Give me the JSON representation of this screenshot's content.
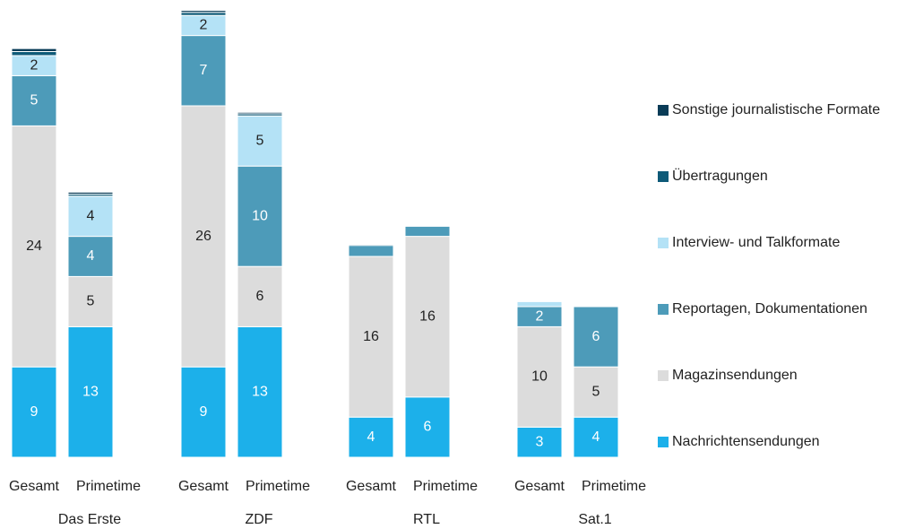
{
  "chart_data": {
    "type": "stacked-bar",
    "groups": [
      "Das Erste",
      "ZDF",
      "RTL",
      "Sat.1"
    ],
    "subcategories": [
      "Gesamt",
      "Primetime"
    ],
    "series": [
      {
        "name": "Nachrichtensendungen",
        "color": "#1cb0ea",
        "values": [
          9,
          13,
          9,
          13,
          4,
          6,
          3,
          4
        ]
      },
      {
        "name": "Magazinsendungen",
        "color": "#dcdcdc",
        "values": [
          24,
          5,
          26,
          6,
          16,
          16,
          10,
          5
        ]
      },
      {
        "name": "Reportagen, Dokumentationen",
        "color": "#4d9bb9",
        "values": [
          5,
          4,
          7,
          10,
          1.1,
          1,
          2,
          6
        ]
      },
      {
        "name": "Interview- und Talkformate",
        "color": "#b4e2f6",
        "values": [
          2,
          4,
          2,
          5,
          null,
          null,
          0.5,
          null
        ]
      },
      {
        "name": "Übertragungen",
        "color": "#0e5a78",
        "values": [
          0.4,
          0.2,
          0.3,
          0.2,
          0.1,
          null,
          null,
          null
        ]
      },
      {
        "name": "Sonstige journalistische Formate",
        "color": "#0a3c57",
        "values": [
          0.3,
          0.2,
          0.2,
          0.15,
          null,
          null,
          null,
          null
        ]
      }
    ]
  }
}
